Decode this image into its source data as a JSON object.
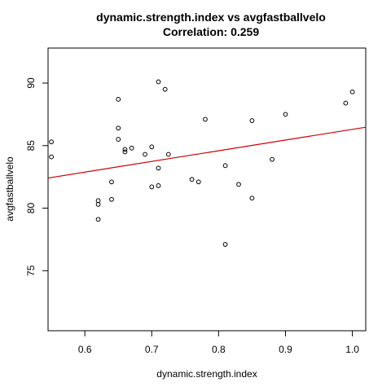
{
  "chart_data": {
    "type": "scatter",
    "title": "dynamic.strength.index vs avgfastballvelo",
    "subtitle": "Correlation: 0.259",
    "xlabel": "dynamic.strength.index",
    "ylabel": "avgfastballvelo",
    "xlim": [
      0.545,
      1.02
    ],
    "ylim": [
      70.2,
      92.8
    ],
    "xticks": [
      0.6,
      0.7,
      0.8,
      0.9,
      1.0
    ],
    "xtick_labels": [
      "0.6",
      "0.7",
      "0.8",
      "0.9",
      "1.0"
    ],
    "yticks": [
      75,
      80,
      85,
      90
    ],
    "ytick_labels": [
      "75",
      "80",
      "85",
      "90"
    ],
    "grid": false,
    "point_color": "#000000",
    "trendline": {
      "intercept": 77.75,
      "slope": 8.55,
      "color": "#cc0000"
    },
    "points": [
      {
        "x": 0.55,
        "y": 85.3
      },
      {
        "x": 0.55,
        "y": 84.1
      },
      {
        "x": 0.62,
        "y": 80.6
      },
      {
        "x": 0.62,
        "y": 80.3
      },
      {
        "x": 0.62,
        "y": 79.1
      },
      {
        "x": 0.64,
        "y": 82.1
      },
      {
        "x": 0.64,
        "y": 80.7
      },
      {
        "x": 0.65,
        "y": 88.7
      },
      {
        "x": 0.65,
        "y": 86.4
      },
      {
        "x": 0.65,
        "y": 85.5
      },
      {
        "x": 0.66,
        "y": 84.7
      },
      {
        "x": 0.66,
        "y": 84.5
      },
      {
        "x": 0.67,
        "y": 84.8
      },
      {
        "x": 0.69,
        "y": 84.3
      },
      {
        "x": 0.7,
        "y": 84.9
      },
      {
        "x": 0.7,
        "y": 81.7
      },
      {
        "x": 0.71,
        "y": 90.1
      },
      {
        "x": 0.71,
        "y": 83.2
      },
      {
        "x": 0.71,
        "y": 81.8
      },
      {
        "x": 0.72,
        "y": 89.5
      },
      {
        "x": 0.725,
        "y": 84.3
      },
      {
        "x": 0.76,
        "y": 82.3
      },
      {
        "x": 0.77,
        "y": 82.1
      },
      {
        "x": 0.78,
        "y": 87.1
      },
      {
        "x": 0.81,
        "y": 83.4
      },
      {
        "x": 0.81,
        "y": 77.1
      },
      {
        "x": 0.83,
        "y": 81.9
      },
      {
        "x": 0.85,
        "y": 87.0
      },
      {
        "x": 0.85,
        "y": 80.8
      },
      {
        "x": 0.88,
        "y": 83.9
      },
      {
        "x": 0.9,
        "y": 87.5
      },
      {
        "x": 0.99,
        "y": 88.4
      },
      {
        "x": 1.0,
        "y": 89.3
      }
    ]
  }
}
